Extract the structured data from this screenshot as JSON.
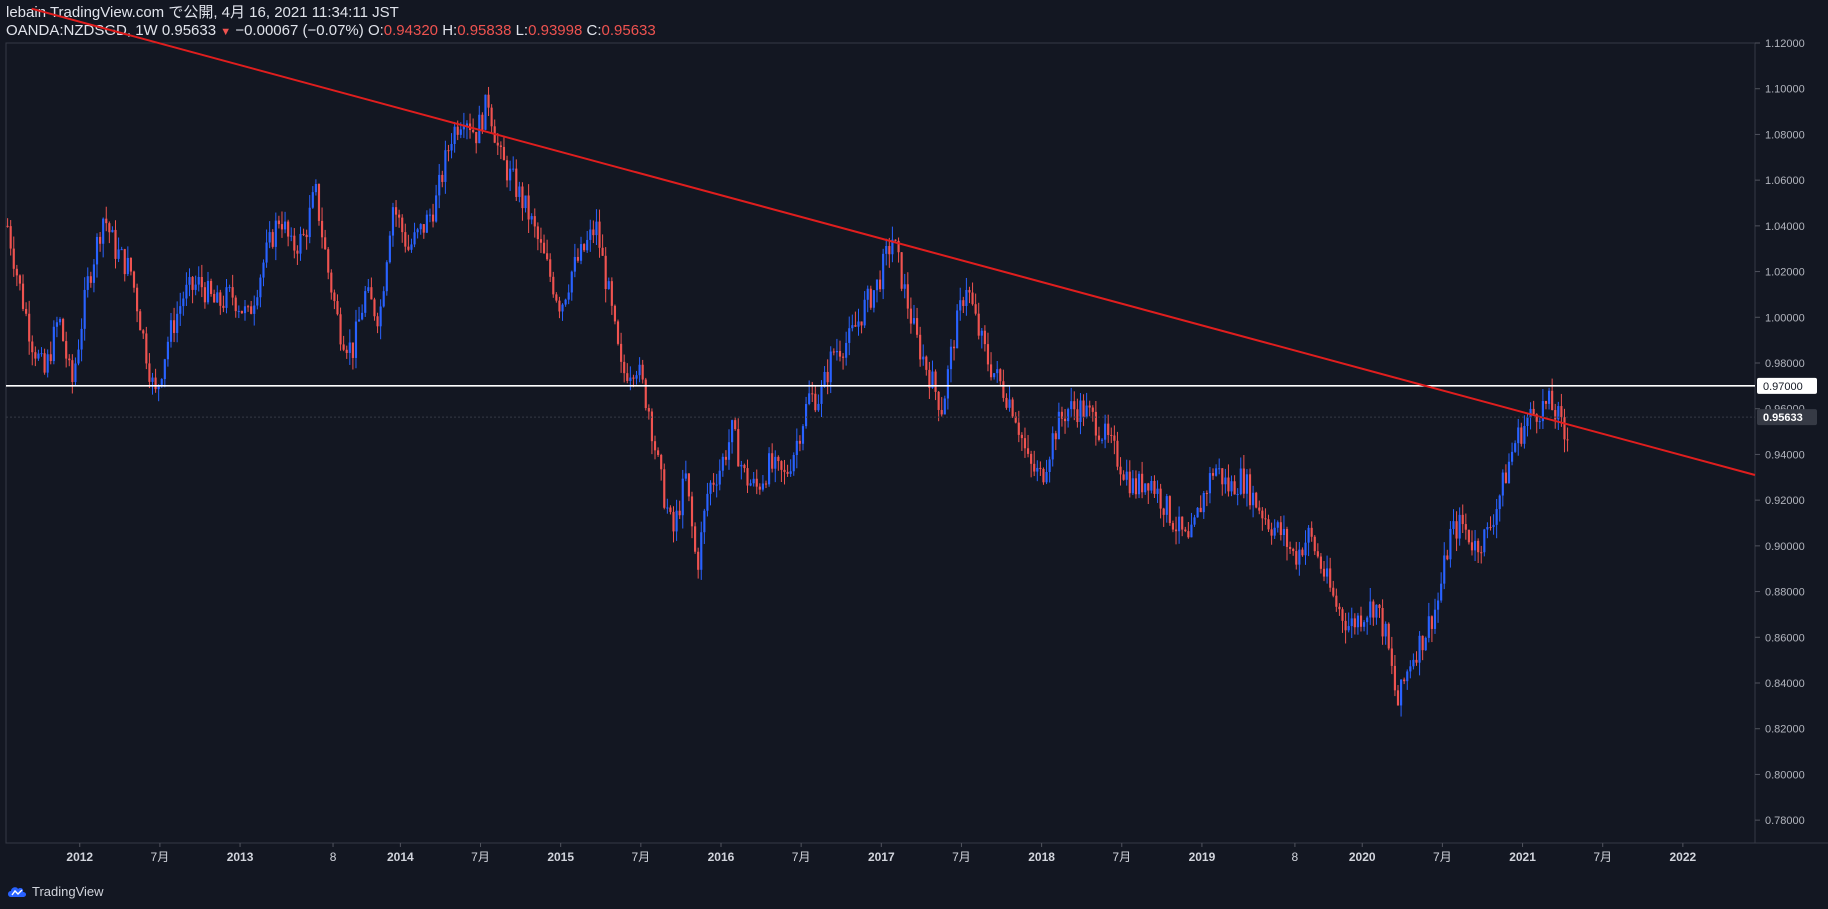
{
  "header": {
    "author": "lebain",
    "publish_text": "TradingView.com で公開, 4月 16, 2021 11:34:11 JST",
    "symbol": "OANDA:NZDSGD",
    "interval": "1W",
    "last_price": "0.95633",
    "change": "−0.00067 (−0.07%)",
    "o_label": "O:",
    "o_value": "0.94320",
    "h_label": "H:",
    "h_value": "0.95838",
    "l_label": "L:",
    "l_value": "0.93998",
    "c_label": "C:",
    "c_value": "0.95633"
  },
  "footer": {
    "brand": "TradingView"
  },
  "colors": {
    "background": "#131722",
    "up": "#2962ff",
    "down": "#ef5350",
    "trendline": "#e01e1e",
    "hline": "#ffffff"
  },
  "chart_data": {
    "type": "candlestick",
    "symbol": "OANDA:NZDSGD",
    "interval": "1W",
    "ylim": [
      0.77,
      1.12
    ],
    "y_ticks": [
      "1.12000",
      "1.10000",
      "1.08000",
      "1.06000",
      "1.04000",
      "1.02000",
      "1.00000",
      "0.98000",
      "0.96000",
      "0.94000",
      "0.92000",
      "0.90000",
      "0.88000",
      "0.86000",
      "0.84000",
      "0.82000",
      "0.80000",
      "0.78000"
    ],
    "x_ticks": [
      {
        "label": "2012",
        "t": 2012.0
      },
      {
        "label": "7月",
        "t": 2012.5
      },
      {
        "label": "2013",
        "t": 2013.0
      },
      {
        "label": "8",
        "t": 2013.58
      },
      {
        "label": "2014",
        "t": 2014.0
      },
      {
        "label": "7月",
        "t": 2014.5
      },
      {
        "label": "2015",
        "t": 2015.0
      },
      {
        "label": "7月",
        "t": 2015.5
      },
      {
        "label": "2016",
        "t": 2016.0
      },
      {
        "label": "7月",
        "t": 2016.5
      },
      {
        "label": "2017",
        "t": 2017.0
      },
      {
        "label": "7月",
        "t": 2017.5
      },
      {
        "label": "2018",
        "t": 2018.0
      },
      {
        "label": "7月",
        "t": 2018.5
      },
      {
        "label": "2019",
        "t": 2019.0
      },
      {
        "label": "8",
        "t": 2019.58
      },
      {
        "label": "2020",
        "t": 2020.0
      },
      {
        "label": "7月",
        "t": 2020.5
      },
      {
        "label": "2021",
        "t": 2021.0
      },
      {
        "label": "7月",
        "t": 2021.5
      },
      {
        "label": "2022",
        "t": 2022.0
      }
    ],
    "x_range": [
      2011.54,
      2022.45
    ],
    "price_path": [
      [
        2011.55,
        1.04
      ],
      [
        2011.62,
        1.015
      ],
      [
        2011.7,
        0.99
      ],
      [
        2011.78,
        0.975
      ],
      [
        2011.87,
        1.0
      ],
      [
        2011.95,
        0.97
      ],
      [
        2012.05,
        1.015
      ],
      [
        2012.15,
        1.045
      ],
      [
        2012.22,
        1.03
      ],
      [
        2012.32,
        1.02
      ],
      [
        2012.4,
        0.99
      ],
      [
        2012.47,
        0.965
      ],
      [
        2012.55,
        0.99
      ],
      [
        2012.65,
        1.01
      ],
      [
        2012.75,
        1.015
      ],
      [
        2012.85,
        1.005
      ],
      [
        2012.95,
        1.01
      ],
      [
        2013.05,
        1.0
      ],
      [
        2013.15,
        1.025
      ],
      [
        2013.25,
        1.045
      ],
      [
        2013.32,
        1.03
      ],
      [
        2013.4,
        1.035
      ],
      [
        2013.47,
        1.055
      ],
      [
        2013.55,
        1.02
      ],
      [
        2013.62,
        0.995
      ],
      [
        2013.7,
        0.985
      ],
      [
        2013.78,
        1.01
      ],
      [
        2013.87,
        1.0
      ],
      [
        2013.95,
        1.05
      ],
      [
        2014.05,
        1.03
      ],
      [
        2014.15,
        1.04
      ],
      [
        2014.22,
        1.05
      ],
      [
        2014.32,
        1.08
      ],
      [
        2014.4,
        1.09
      ],
      [
        2014.47,
        1.08
      ],
      [
        2014.55,
        1.095
      ],
      [
        2014.62,
        1.07
      ],
      [
        2014.7,
        1.06
      ],
      [
        2014.8,
        1.045
      ],
      [
        2014.9,
        1.025
      ],
      [
        2015.0,
        1.005
      ],
      [
        2015.07,
        1.02
      ],
      [
        2015.15,
        1.03
      ],
      [
        2015.22,
        1.04
      ],
      [
        2015.3,
        1.01
      ],
      [
        2015.38,
        0.975
      ],
      [
        2015.47,
        0.98
      ],
      [
        2015.55,
        0.96
      ],
      [
        2015.62,
        0.93
      ],
      [
        2015.7,
        0.905
      ],
      [
        2015.78,
        0.93
      ],
      [
        2015.85,
        0.89
      ],
      [
        2015.92,
        0.925
      ],
      [
        2016.0,
        0.935
      ],
      [
        2016.07,
        0.95
      ],
      [
        2016.15,
        0.93
      ],
      [
        2016.22,
        0.925
      ],
      [
        2016.3,
        0.935
      ],
      [
        2016.4,
        0.93
      ],
      [
        2016.47,
        0.945
      ],
      [
        2016.55,
        0.965
      ],
      [
        2016.62,
        0.965
      ],
      [
        2016.7,
        0.985
      ],
      [
        2016.8,
        0.99
      ],
      [
        2016.9,
        1.005
      ],
      [
        2016.98,
        1.015
      ],
      [
        2017.07,
        1.035
      ],
      [
        2017.15,
        1.01
      ],
      [
        2017.22,
        0.99
      ],
      [
        2017.3,
        0.975
      ],
      [
        2017.38,
        0.96
      ],
      [
        2017.45,
        0.99
      ],
      [
        2017.53,
        1.015
      ],
      [
        2017.6,
        0.995
      ],
      [
        2017.67,
        0.98
      ],
      [
        2017.75,
        0.97
      ],
      [
        2017.83,
        0.96
      ],
      [
        2017.92,
        0.935
      ],
      [
        2018.0,
        0.93
      ],
      [
        2018.08,
        0.95
      ],
      [
        2018.16,
        0.96
      ],
      [
        2018.25,
        0.96
      ],
      [
        2018.33,
        0.955
      ],
      [
        2018.42,
        0.945
      ],
      [
        2018.5,
        0.935
      ],
      [
        2018.58,
        0.925
      ],
      [
        2018.67,
        0.93
      ],
      [
        2018.75,
        0.92
      ],
      [
        2018.83,
        0.91
      ],
      [
        2018.92,
        0.9
      ],
      [
        2019.0,
        0.92
      ],
      [
        2019.08,
        0.935
      ],
      [
        2019.17,
        0.925
      ],
      [
        2019.25,
        0.93
      ],
      [
        2019.33,
        0.92
      ],
      [
        2019.42,
        0.91
      ],
      [
        2019.5,
        0.905
      ],
      [
        2019.58,
        0.895
      ],
      [
        2019.67,
        0.905
      ],
      [
        2019.75,
        0.89
      ],
      [
        2019.83,
        0.875
      ],
      [
        2019.92,
        0.865
      ],
      [
        2020.0,
        0.87
      ],
      [
        2020.08,
        0.875
      ],
      [
        2020.15,
        0.86
      ],
      [
        2020.22,
        0.83
      ],
      [
        2020.3,
        0.85
      ],
      [
        2020.38,
        0.86
      ],
      [
        2020.47,
        0.875
      ],
      [
        2020.55,
        0.905
      ],
      [
        2020.62,
        0.91
      ],
      [
        2020.7,
        0.9
      ],
      [
        2020.78,
        0.905
      ],
      [
        2020.87,
        0.925
      ],
      [
        2020.95,
        0.945
      ],
      [
        2021.03,
        0.955
      ],
      [
        2021.1,
        0.96
      ],
      [
        2021.17,
        0.962
      ],
      [
        2021.23,
        0.955
      ],
      [
        2021.27,
        0.945
      ],
      [
        2021.29,
        0.956
      ]
    ],
    "trendline": [
      [
        2011.7,
        1.135
      ],
      [
        2022.45,
        0.931
      ]
    ],
    "horizontal_line": {
      "value": 0.97,
      "label": "0.97000"
    },
    "last_price_label": "0.95633",
    "last_price": 0.95633
  }
}
